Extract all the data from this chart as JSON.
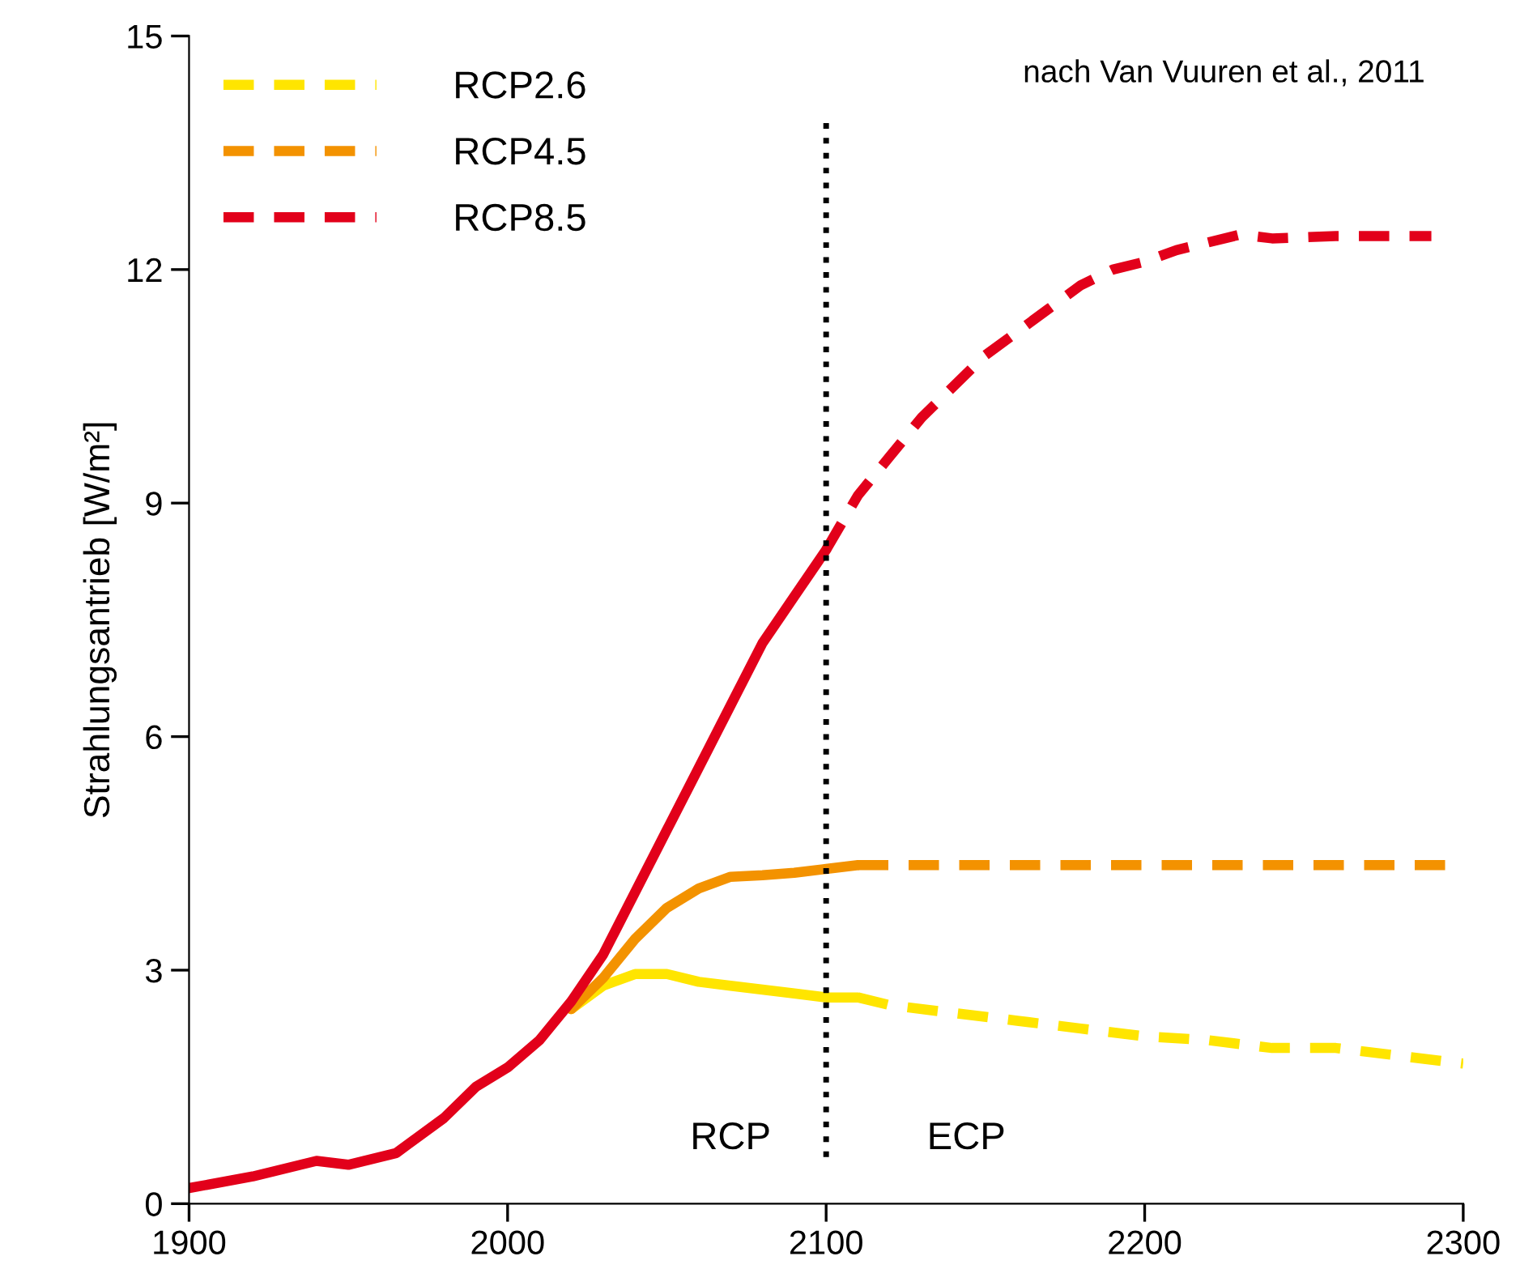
{
  "chart_data": {
    "type": "line",
    "ylabel": "Strahlungsantrieb [W/m²]",
    "xlim": [
      1900,
      2300
    ],
    "xticks": [
      1900,
      2000,
      2100,
      2200,
      2300
    ],
    "ylim": [
      0,
      15
    ],
    "yticks": [
      0,
      3,
      6,
      9,
      12,
      15
    ],
    "grid": false,
    "legend": "top left",
    "marker": "none",
    "annotations": [
      "nach Van Vuuren et al., 2011",
      "RCP",
      "ECP"
    ],
    "ref_lines": [
      {
        "axis": "x",
        "value": 2100,
        "color": "#000000",
        "line_style": "dotted"
      }
    ],
    "series": [
      {
        "color": "#ffe500",
        "line_style": "solid",
        "x": [
          2020,
          2030,
          2040,
          2050,
          2060,
          2070,
          2080,
          2090,
          2100,
          2110
        ],
        "values": [
          2.5,
          2.8,
          2.95,
          2.95,
          2.85,
          2.8,
          2.75,
          2.7,
          2.65,
          2.65
        ]
      },
      {
        "color": "#f39200",
        "line_style": "solid",
        "x": [
          2020,
          2030,
          2040,
          2050,
          2060,
          2070,
          2080,
          2090,
          2100,
          2110
        ],
        "values": [
          2.5,
          2.9,
          3.4,
          3.8,
          4.05,
          4.2,
          4.22,
          4.25,
          4.3,
          4.35
        ]
      },
      {
        "color": "#e2001a",
        "line_style": "solid",
        "x": [
          1900,
          1920,
          1940,
          1950,
          1965,
          1980,
          1990,
          2000,
          2010,
          2020,
          2030,
          2040,
          2050,
          2060,
          2070,
          2080,
          2090,
          2100
        ],
        "values": [
          0.2,
          0.35,
          0.55,
          0.5,
          0.65,
          1.1,
          1.5,
          1.75,
          2.1,
          2.6,
          3.2,
          4.0,
          4.8,
          5.6,
          6.4,
          7.2,
          7.8,
          8.4
        ]
      },
      {
        "name": "RCP2.6",
        "color": "#ffe500",
        "line_style": "dashed",
        "x": [
          2110,
          2120,
          2140,
          2160,
          2180,
          2200,
          2220,
          2240,
          2260,
          2280,
          2300
        ],
        "values": [
          2.65,
          2.55,
          2.45,
          2.35,
          2.25,
          2.15,
          2.1,
          2.0,
          2.0,
          1.9,
          1.8
        ]
      },
      {
        "name": "RCP4.5",
        "color": "#f39200",
        "line_style": "dashed",
        "x": [
          2110,
          2150,
          2200,
          2250,
          2300
        ],
        "values": [
          4.35,
          4.35,
          4.35,
          4.35,
          4.35
        ]
      },
      {
        "name": "RCP8.5",
        "color": "#e2001a",
        "line_style": "dashed",
        "x": [
          2100,
          2110,
          2120,
          2130,
          2140,
          2150,
          2160,
          2170,
          2180,
          2190,
          2200,
          2210,
          2220,
          2230,
          2240,
          2260,
          2290
        ],
        "values": [
          8.4,
          9.1,
          9.6,
          10.1,
          10.5,
          10.9,
          11.2,
          11.5,
          11.8,
          12.0,
          12.1,
          12.25,
          12.35,
          12.45,
          12.4,
          12.43,
          12.43
        ]
      }
    ]
  }
}
